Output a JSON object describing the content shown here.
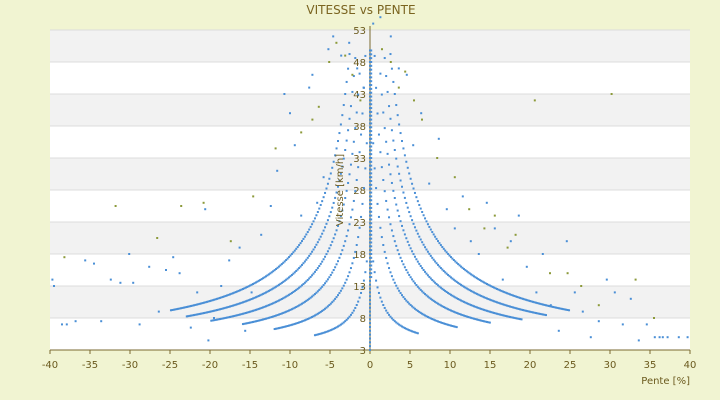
{
  "chart_data": {
    "type": "scatter",
    "title": "VITESSE vs PENTE",
    "xlabel": "Pente [%]",
    "ylabel": "Vitesse [km/h]",
    "xlim": [
      -40,
      40
    ],
    "ylim": [
      3,
      53
    ],
    "x_ticks": [
      "-40",
      "-35",
      "-30",
      "-25",
      "-20",
      "-15",
      "-10",
      "-5",
      "0",
      "5",
      "10",
      "15",
      "20",
      "25",
      "30",
      "35",
      "40"
    ],
    "y_ticks": [
      "53",
      "48",
      "43",
      "38",
      "33",
      "28",
      "23",
      "18",
      "13",
      "8",
      "3"
    ],
    "grid": true,
    "legend": "none",
    "background_bands": true,
    "colors": {
      "page": "#f1f4d2",
      "plot_band_light": "#ffffff",
      "plot_band_dark": "#f2f2f2",
      "series_primary": "#4a8fd6",
      "series_secondary": "#8c9a3a",
      "text": "#6b5a1e"
    },
    "series": [
      {
        "marker_color": "#4a8fd6",
        "points": [
          [
            -39.7,
            14
          ],
          [
            -39.5,
            13
          ],
          [
            -38.5,
            7
          ],
          [
            -37.9,
            7
          ],
          [
            -36.8,
            7.5
          ],
          [
            -35.6,
            17
          ],
          [
            -34.5,
            16.5
          ],
          [
            -33.6,
            7.5
          ],
          [
            -32.4,
            14
          ],
          [
            -31.2,
            13.5
          ],
          [
            -30.1,
            18
          ],
          [
            -29.6,
            13.5
          ],
          [
            -28.8,
            7
          ],
          [
            -27.6,
            16
          ],
          [
            -26.4,
            9
          ],
          [
            -25.5,
            15.5
          ],
          [
            -24.6,
            17.5
          ],
          [
            -23.8,
            15
          ],
          [
            -22.4,
            6.5
          ],
          [
            -21.6,
            12
          ],
          [
            -20.6,
            25
          ],
          [
            -20.2,
            4.5
          ],
          [
            -19.5,
            8
          ],
          [
            -18.6,
            13
          ],
          [
            -17.6,
            17
          ],
          [
            -16.3,
            19
          ],
          [
            -15.6,
            6
          ],
          [
            -14.8,
            12
          ],
          [
            -13.6,
            21
          ],
          [
            -12.4,
            25.5
          ],
          [
            -11.6,
            31
          ],
          [
            -10.7,
            43
          ],
          [
            -10.0,
            40
          ],
          [
            -9.4,
            35
          ],
          [
            -8.6,
            24
          ],
          [
            -7.6,
            44
          ],
          [
            -7.2,
            46
          ],
          [
            -6.6,
            26
          ],
          [
            -5.8,
            30
          ],
          [
            -5.2,
            50
          ],
          [
            -4.6,
            52
          ],
          [
            -3.6,
            49
          ],
          [
            -2.6,
            51
          ],
          [
            -1.6,
            47
          ],
          [
            -0.8,
            44
          ],
          [
            0.4,
            54
          ],
          [
            1.3,
            55
          ],
          [
            2.6,
            52
          ],
          [
            3.6,
            47
          ],
          [
            4.6,
            46
          ],
          [
            5.4,
            35
          ],
          [
            6.4,
            40
          ],
          [
            7.4,
            29
          ],
          [
            8.6,
            36
          ],
          [
            9.6,
            25
          ],
          [
            10.6,
            22
          ],
          [
            11.6,
            27
          ],
          [
            12.6,
            20
          ],
          [
            13.6,
            18
          ],
          [
            14.6,
            26
          ],
          [
            15.6,
            22
          ],
          [
            16.6,
            14
          ],
          [
            17.6,
            20
          ],
          [
            18.6,
            24
          ],
          [
            19.6,
            16
          ],
          [
            20.8,
            12
          ],
          [
            21.6,
            18
          ],
          [
            22.6,
            10
          ],
          [
            23.6,
            6
          ],
          [
            24.6,
            20
          ],
          [
            25.6,
            12
          ],
          [
            26.6,
            9
          ],
          [
            27.6,
            5
          ],
          [
            28.6,
            7.5
          ],
          [
            29.6,
            14
          ],
          [
            30.6,
            12
          ],
          [
            31.6,
            7
          ],
          [
            32.6,
            11
          ],
          [
            33.6,
            4.5
          ],
          [
            34.6,
            7
          ],
          [
            35.6,
            5
          ],
          [
            36.2,
            5
          ],
          [
            36.6,
            5
          ],
          [
            37.2,
            5
          ],
          [
            38.6,
            5
          ],
          [
            39.7,
            5
          ]
        ],
        "curves": [
          {
            "side": -1,
            "k": 18,
            "x_max": 7
          },
          {
            "side": -1,
            "k": 42,
            "x_max": 12
          },
          {
            "side": -1,
            "k": 68,
            "x_max": 16
          },
          {
            "side": -1,
            "k": 95,
            "x_max": 20
          },
          {
            "side": -1,
            "k": 125,
            "x_max": 23
          },
          {
            "side": -1,
            "k": 160,
            "x_max": 25
          },
          {
            "side": 1,
            "k": 18,
            "x_max": 6
          },
          {
            "side": 1,
            "k": 42,
            "x_max": 11
          },
          {
            "side": 1,
            "k": 68,
            "x_max": 15
          },
          {
            "side": 1,
            "k": 95,
            "x_max": 19
          },
          {
            "side": 1,
            "k": 125,
            "x_max": 22
          },
          {
            "side": 1,
            "k": 160,
            "x_max": 25
          }
        ]
      },
      {
        "marker_color": "#8c9a3a",
        "points": [
          [
            -38.2,
            17.5
          ],
          [
            -31.8,
            25.5
          ],
          [
            -26.6,
            20.5
          ],
          [
            -23.6,
            25.5
          ],
          [
            -20.8,
            26
          ],
          [
            -17.4,
            20
          ],
          [
            -14.6,
            27
          ],
          [
            -11.8,
            34.5
          ],
          [
            -8.6,
            37
          ],
          [
            -7.2,
            39
          ],
          [
            -6.4,
            41
          ],
          [
            -5.1,
            48
          ],
          [
            -4.2,
            51
          ],
          [
            -3.1,
            49
          ],
          [
            -2.2,
            46
          ],
          [
            -1.2,
            42
          ],
          [
            1.5,
            50
          ],
          [
            2.6,
            48
          ],
          [
            3.6,
            44
          ],
          [
            4.4,
            46.5
          ],
          [
            5.5,
            42
          ],
          [
            6.5,
            39
          ],
          [
            8.4,
            33
          ],
          [
            10.6,
            30
          ],
          [
            12.4,
            25
          ],
          [
            14.3,
            22
          ],
          [
            15.6,
            24
          ],
          [
            17.2,
            19
          ],
          [
            18.2,
            21
          ],
          [
            20.6,
            42
          ],
          [
            22.5,
            15
          ],
          [
            24.7,
            15
          ],
          [
            26.4,
            13
          ],
          [
            28.6,
            10
          ],
          [
            30.2,
            43
          ],
          [
            33.2,
            14
          ],
          [
            35.5,
            8
          ]
        ]
      }
    ]
  }
}
